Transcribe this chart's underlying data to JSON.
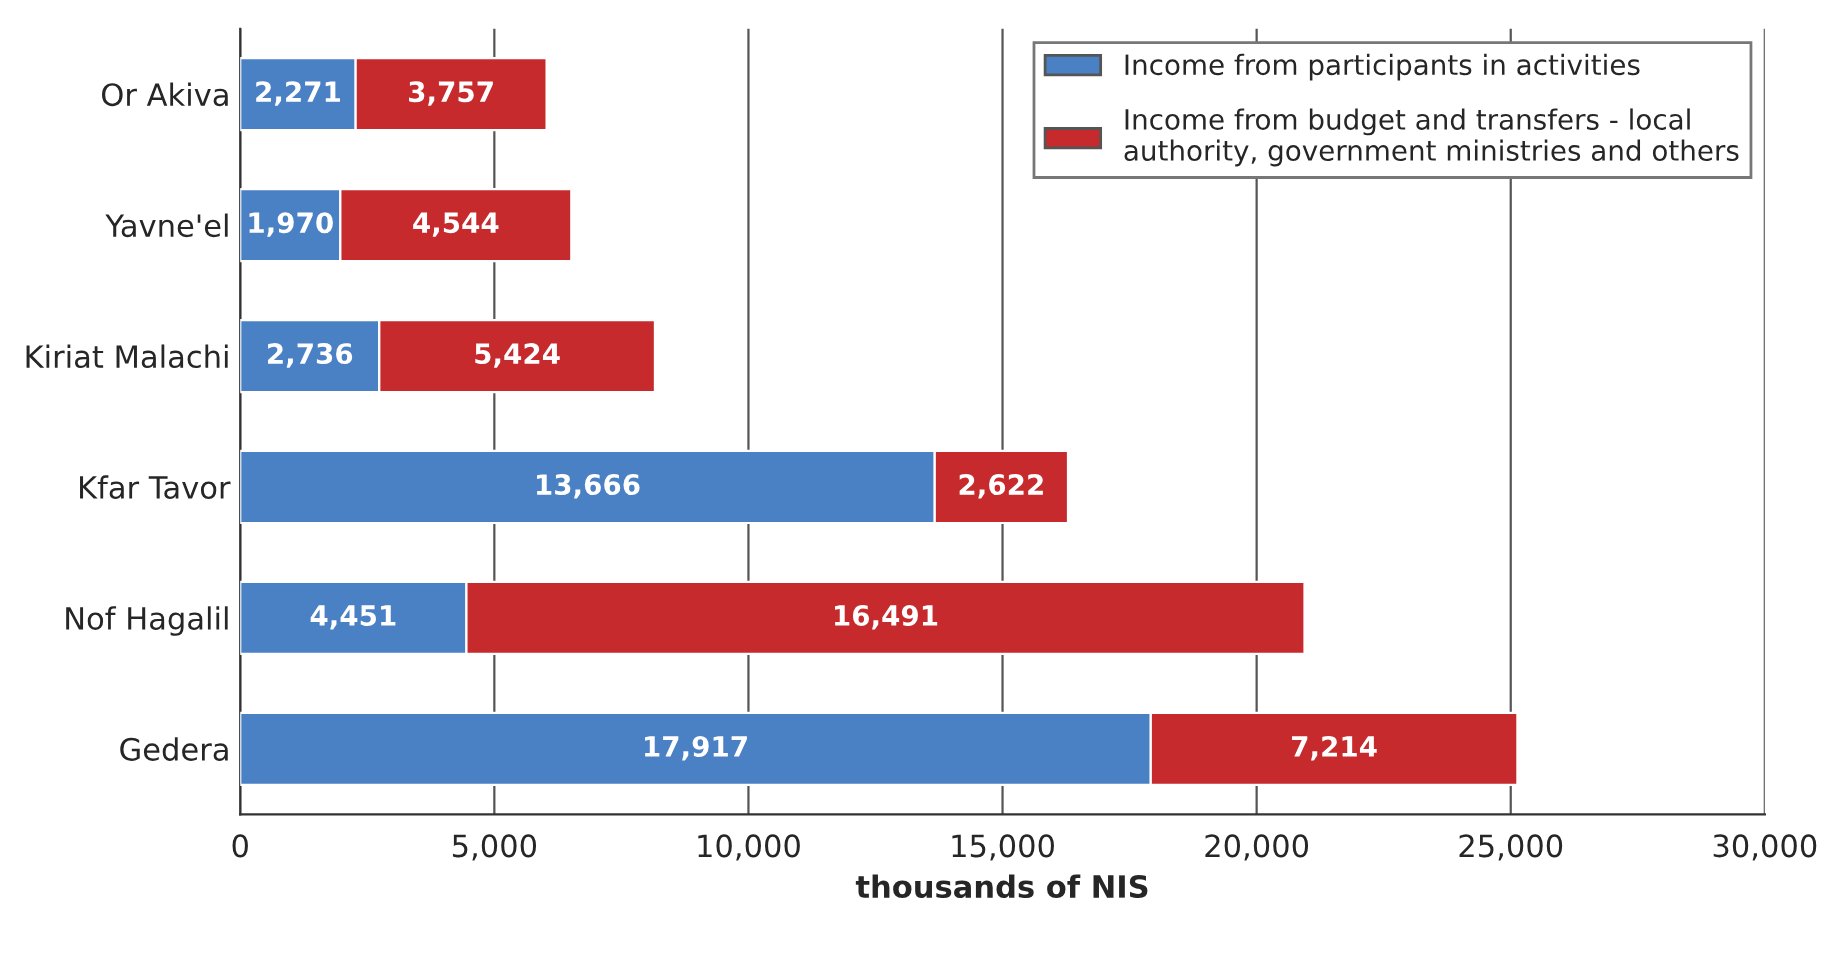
{
  "chart_data": {
    "type": "bar",
    "orientation": "horizontal",
    "stacked": true,
    "categories": [
      "Or Akiva",
      "Yavne'el",
      "Kiriat Malachi",
      "Kfar Tavor",
      "Nof Hagalil",
      "Gedera"
    ],
    "series": [
      {
        "name": "Income from participants in activities",
        "color": "#4a80c4",
        "values": [
          2271,
          1970,
          2736,
          13666,
          4451,
          17917
        ],
        "value_labels": [
          "2,271",
          "1,970",
          "2,736",
          "13,666",
          "4,451",
          "17,917"
        ]
      },
      {
        "name": "Income from budget and transfers - local authority, government ministries and others",
        "color": "#c62a2c",
        "values": [
          3757,
          4544,
          5424,
          2622,
          16491,
          7214
        ],
        "value_labels": [
          "3,757",
          "4,544",
          "5,424",
          "2,622",
          "16,491",
          "7,214"
        ]
      }
    ],
    "xlabel": "thousands of NIS",
    "xlim": [
      0,
      30000
    ],
    "xticks": [
      0,
      {
        "value": 5000,
        "label": "5,000"
      },
      {
        "value": 10000,
        "label": "10,000"
      },
      {
        "value": 15000,
        "label": "15,000"
      },
      {
        "value": 20000,
        "label": "20,000"
      },
      {
        "value": 25000,
        "label": "25,000"
      },
      {
        "value": 30000,
        "label": "30,000"
      }
    ],
    "grid": "x",
    "legend": "top right"
  }
}
